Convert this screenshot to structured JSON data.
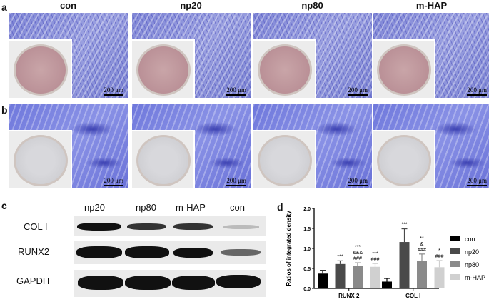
{
  "panels": {
    "a": "a",
    "b": "b",
    "c": "c",
    "d": "d"
  },
  "columns": [
    "con",
    "np20",
    "np80",
    "m-HAP"
  ],
  "scale_bar": "200 μm",
  "blot": {
    "lanes": [
      "np20",
      "np80",
      "m-HAP",
      "con"
    ],
    "rows": [
      "COL I",
      "RUNX2",
      "GAPDH"
    ]
  },
  "chart_data": {
    "type": "bar",
    "ylabel": "Ratios of integrated density",
    "ylim": [
      0,
      2.0
    ],
    "yticks": [
      "0.0",
      "0.5",
      "1.0",
      "1.5",
      "2.0"
    ],
    "categories": [
      "RUNX 2",
      "COL I"
    ],
    "legend_position": "right",
    "series": [
      {
        "name": "con",
        "color": "#000000",
        "values": [
          0.37,
          0.17
        ],
        "errors": [
          0.08,
          0.08
        ],
        "annotations": [
          "",
          ""
        ]
      },
      {
        "name": "np20",
        "color": "#4a4a4a",
        "values": [
          0.61,
          1.16
        ],
        "errors": [
          0.08,
          0.33
        ],
        "annotations": [
          "***",
          "***"
        ]
      },
      {
        "name": "np80",
        "color": "#8a8a8a",
        "values": [
          0.57,
          0.68
        ],
        "errors": [
          0.07,
          0.18
        ],
        "annotations": [
          "***\n&&&\n###",
          "**\n&\n###"
        ]
      },
      {
        "name": "m-HAP",
        "color": "#d0d0d0",
        "values": [
          0.54,
          0.53
        ],
        "errors": [
          0.08,
          0.17
        ],
        "annotations": [
          "***\n###",
          "*\n###"
        ]
      }
    ]
  }
}
